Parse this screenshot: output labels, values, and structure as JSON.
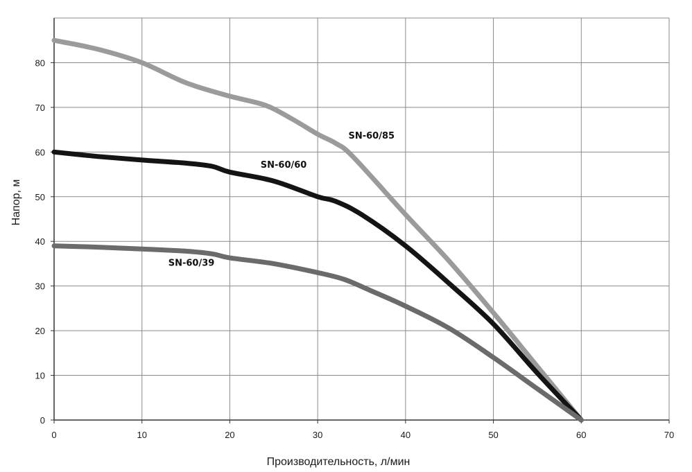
{
  "chart_data": {
    "type": "line",
    "title": "",
    "xlabel": "Производительность, л/мин",
    "ylabel": "Напор, м",
    "xlim": [
      0,
      70
    ],
    "ylim": [
      0,
      90
    ],
    "xticks": [
      0,
      10,
      20,
      30,
      40,
      50,
      60,
      70
    ],
    "yticks": [
      0,
      10,
      20,
      30,
      40,
      50,
      60,
      70,
      80
    ],
    "grid": true,
    "legend": "inline labels",
    "series": [
      {
        "name": "SN-60/85",
        "color": "#9b9b9b",
        "points": [
          [
            0,
            85
          ],
          [
            5,
            83
          ],
          [
            10,
            80
          ],
          [
            15,
            75.5
          ],
          [
            20,
            72.5
          ],
          [
            24,
            70.5
          ],
          [
            27,
            67.5
          ],
          [
            30,
            64
          ],
          [
            32,
            62
          ],
          [
            34,
            59
          ],
          [
            40,
            46
          ],
          [
            45,
            35.5
          ],
          [
            50,
            24
          ],
          [
            55,
            12
          ],
          [
            60,
            0
          ]
        ]
      },
      {
        "name": "SN-60/60",
        "color": "#141414",
        "points": [
          [
            0,
            60
          ],
          [
            5,
            59
          ],
          [
            10,
            58.2
          ],
          [
            15,
            57.5
          ],
          [
            18,
            56.8
          ],
          [
            20,
            55.5
          ],
          [
            25,
            53.5
          ],
          [
            30,
            50
          ],
          [
            32,
            49
          ],
          [
            35,
            46
          ],
          [
            40,
            39
          ],
          [
            45,
            30.5
          ],
          [
            50,
            21.5
          ],
          [
            55,
            10.5
          ],
          [
            60,
            0
          ]
        ]
      },
      {
        "name": "SN-60/39",
        "color": "#6b6b6b",
        "points": [
          [
            0,
            39
          ],
          [
            5,
            38.7
          ],
          [
            10,
            38.3
          ],
          [
            15,
            37.8
          ],
          [
            18,
            37.2
          ],
          [
            20,
            36.3
          ],
          [
            25,
            35
          ],
          [
            30,
            33
          ],
          [
            33,
            31.5
          ],
          [
            36,
            29
          ],
          [
            40,
            25.5
          ],
          [
            45,
            20.5
          ],
          [
            50,
            14
          ],
          [
            55,
            7
          ],
          [
            60,
            0
          ]
        ]
      }
    ],
    "annotations": [
      {
        "text": "SN-60/85",
        "x": 33.5,
        "y": 63
      },
      {
        "text": "SN-60/60",
        "x": 23.5,
        "y": 56.5
      },
      {
        "text": "SN-60/39",
        "x": 13,
        "y": 34.5
      }
    ]
  }
}
